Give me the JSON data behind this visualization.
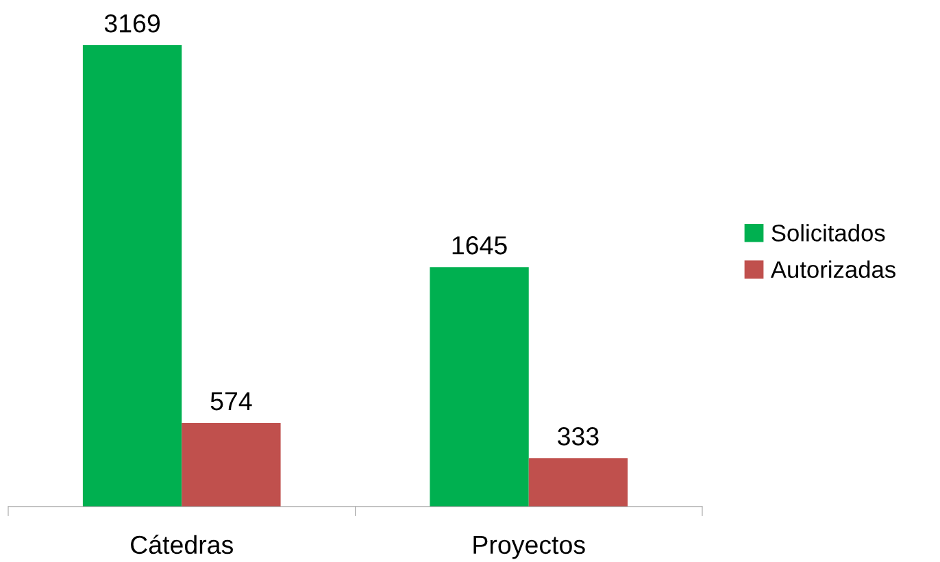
{
  "chart_data": {
    "type": "bar",
    "categories": [
      "Cátedras",
      "Proyectos"
    ],
    "series": [
      {
        "name": "Solicitados",
        "color": "#00b050",
        "values": [
          3169,
          1645
        ]
      },
      {
        "name": "Autorizadas",
        "color": "#c0504d",
        "values": [
          574,
          333
        ]
      }
    ],
    "data_labels": true,
    "legend": "right",
    "grid": false
  }
}
